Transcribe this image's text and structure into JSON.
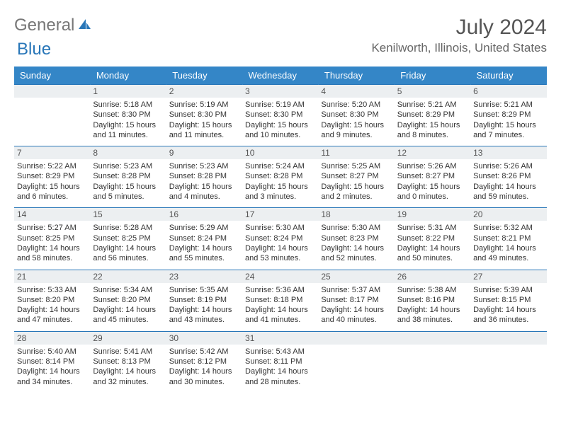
{
  "logo": {
    "text1": "General",
    "text2": "Blue"
  },
  "title": {
    "month": "July 2024",
    "location": "Kenilworth, Illinois, United States"
  },
  "weekdays": [
    "Sunday",
    "Monday",
    "Tuesday",
    "Wednesday",
    "Thursday",
    "Friday",
    "Saturday"
  ],
  "colors": {
    "headerBar": "#3486c7",
    "dayBg": "#eceff1",
    "accent": "#2876b8"
  },
  "weeks": [
    {
      "nums": [
        "",
        "1",
        "2",
        "3",
        "4",
        "5",
        "6"
      ],
      "data": [
        null,
        {
          "sr": "Sunrise: 5:18 AM",
          "ss": "Sunset: 8:30 PM",
          "d1": "Daylight: 15 hours",
          "d2": "and 11 minutes."
        },
        {
          "sr": "Sunrise: 5:19 AM",
          "ss": "Sunset: 8:30 PM",
          "d1": "Daylight: 15 hours",
          "d2": "and 11 minutes."
        },
        {
          "sr": "Sunrise: 5:19 AM",
          "ss": "Sunset: 8:30 PM",
          "d1": "Daylight: 15 hours",
          "d2": "and 10 minutes."
        },
        {
          "sr": "Sunrise: 5:20 AM",
          "ss": "Sunset: 8:30 PM",
          "d1": "Daylight: 15 hours",
          "d2": "and 9 minutes."
        },
        {
          "sr": "Sunrise: 5:21 AM",
          "ss": "Sunset: 8:29 PM",
          "d1": "Daylight: 15 hours",
          "d2": "and 8 minutes."
        },
        {
          "sr": "Sunrise: 5:21 AM",
          "ss": "Sunset: 8:29 PM",
          "d1": "Daylight: 15 hours",
          "d2": "and 7 minutes."
        }
      ]
    },
    {
      "nums": [
        "7",
        "8",
        "9",
        "10",
        "11",
        "12",
        "13"
      ],
      "data": [
        {
          "sr": "Sunrise: 5:22 AM",
          "ss": "Sunset: 8:29 PM",
          "d1": "Daylight: 15 hours",
          "d2": "and 6 minutes."
        },
        {
          "sr": "Sunrise: 5:23 AM",
          "ss": "Sunset: 8:28 PM",
          "d1": "Daylight: 15 hours",
          "d2": "and 5 minutes."
        },
        {
          "sr": "Sunrise: 5:23 AM",
          "ss": "Sunset: 8:28 PM",
          "d1": "Daylight: 15 hours",
          "d2": "and 4 minutes."
        },
        {
          "sr": "Sunrise: 5:24 AM",
          "ss": "Sunset: 8:28 PM",
          "d1": "Daylight: 15 hours",
          "d2": "and 3 minutes."
        },
        {
          "sr": "Sunrise: 5:25 AM",
          "ss": "Sunset: 8:27 PM",
          "d1": "Daylight: 15 hours",
          "d2": "and 2 minutes."
        },
        {
          "sr": "Sunrise: 5:26 AM",
          "ss": "Sunset: 8:27 PM",
          "d1": "Daylight: 15 hours",
          "d2": "and 0 minutes."
        },
        {
          "sr": "Sunrise: 5:26 AM",
          "ss": "Sunset: 8:26 PM",
          "d1": "Daylight: 14 hours",
          "d2": "and 59 minutes."
        }
      ]
    },
    {
      "nums": [
        "14",
        "15",
        "16",
        "17",
        "18",
        "19",
        "20"
      ],
      "data": [
        {
          "sr": "Sunrise: 5:27 AM",
          "ss": "Sunset: 8:25 PM",
          "d1": "Daylight: 14 hours",
          "d2": "and 58 minutes."
        },
        {
          "sr": "Sunrise: 5:28 AM",
          "ss": "Sunset: 8:25 PM",
          "d1": "Daylight: 14 hours",
          "d2": "and 56 minutes."
        },
        {
          "sr": "Sunrise: 5:29 AM",
          "ss": "Sunset: 8:24 PM",
          "d1": "Daylight: 14 hours",
          "d2": "and 55 minutes."
        },
        {
          "sr": "Sunrise: 5:30 AM",
          "ss": "Sunset: 8:24 PM",
          "d1": "Daylight: 14 hours",
          "d2": "and 53 minutes."
        },
        {
          "sr": "Sunrise: 5:30 AM",
          "ss": "Sunset: 8:23 PM",
          "d1": "Daylight: 14 hours",
          "d2": "and 52 minutes."
        },
        {
          "sr": "Sunrise: 5:31 AM",
          "ss": "Sunset: 8:22 PM",
          "d1": "Daylight: 14 hours",
          "d2": "and 50 minutes."
        },
        {
          "sr": "Sunrise: 5:32 AM",
          "ss": "Sunset: 8:21 PM",
          "d1": "Daylight: 14 hours",
          "d2": "and 49 minutes."
        }
      ]
    },
    {
      "nums": [
        "21",
        "22",
        "23",
        "24",
        "25",
        "26",
        "27"
      ],
      "data": [
        {
          "sr": "Sunrise: 5:33 AM",
          "ss": "Sunset: 8:20 PM",
          "d1": "Daylight: 14 hours",
          "d2": "and 47 minutes."
        },
        {
          "sr": "Sunrise: 5:34 AM",
          "ss": "Sunset: 8:20 PM",
          "d1": "Daylight: 14 hours",
          "d2": "and 45 minutes."
        },
        {
          "sr": "Sunrise: 5:35 AM",
          "ss": "Sunset: 8:19 PM",
          "d1": "Daylight: 14 hours",
          "d2": "and 43 minutes."
        },
        {
          "sr": "Sunrise: 5:36 AM",
          "ss": "Sunset: 8:18 PM",
          "d1": "Daylight: 14 hours",
          "d2": "and 41 minutes."
        },
        {
          "sr": "Sunrise: 5:37 AM",
          "ss": "Sunset: 8:17 PM",
          "d1": "Daylight: 14 hours",
          "d2": "and 40 minutes."
        },
        {
          "sr": "Sunrise: 5:38 AM",
          "ss": "Sunset: 8:16 PM",
          "d1": "Daylight: 14 hours",
          "d2": "and 38 minutes."
        },
        {
          "sr": "Sunrise: 5:39 AM",
          "ss": "Sunset: 8:15 PM",
          "d1": "Daylight: 14 hours",
          "d2": "and 36 minutes."
        }
      ]
    },
    {
      "nums": [
        "28",
        "29",
        "30",
        "31",
        "",
        "",
        ""
      ],
      "data": [
        {
          "sr": "Sunrise: 5:40 AM",
          "ss": "Sunset: 8:14 PM",
          "d1": "Daylight: 14 hours",
          "d2": "and 34 minutes."
        },
        {
          "sr": "Sunrise: 5:41 AM",
          "ss": "Sunset: 8:13 PM",
          "d1": "Daylight: 14 hours",
          "d2": "and 32 minutes."
        },
        {
          "sr": "Sunrise: 5:42 AM",
          "ss": "Sunset: 8:12 PM",
          "d1": "Daylight: 14 hours",
          "d2": "and 30 minutes."
        },
        {
          "sr": "Sunrise: 5:43 AM",
          "ss": "Sunset: 8:11 PM",
          "d1": "Daylight: 14 hours",
          "d2": "and 28 minutes."
        },
        null,
        null,
        null
      ]
    }
  ]
}
